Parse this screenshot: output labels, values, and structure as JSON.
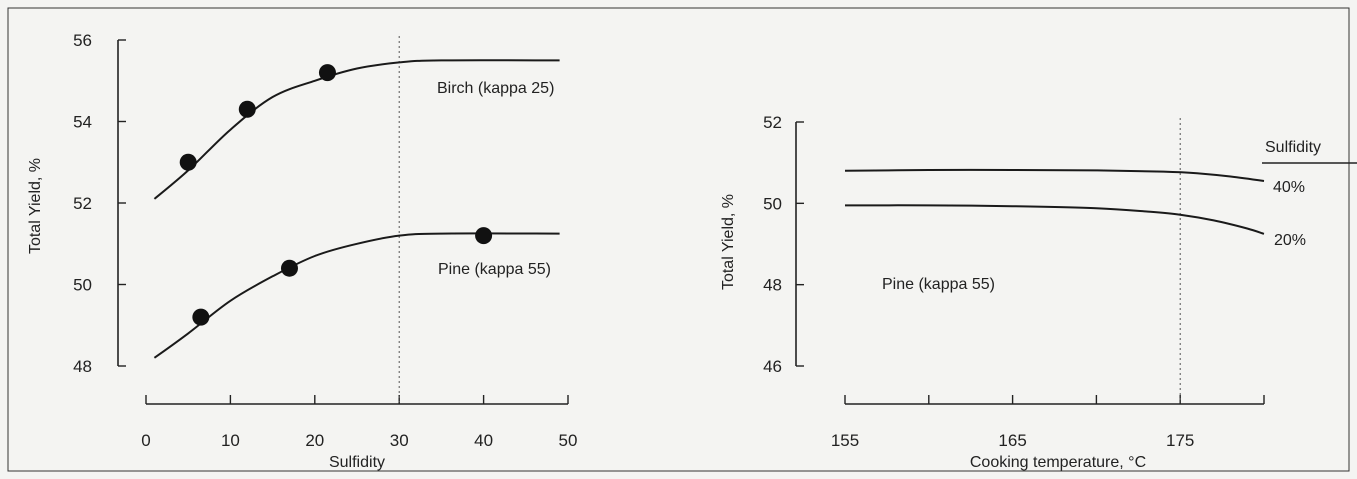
{
  "chart_data": [
    {
      "type": "line",
      "xlabel": "Sulfidity",
      "ylabel": "Total Yield, %",
      "xlim": [
        0,
        50
      ],
      "ylim": [
        48,
        56
      ],
      "xticks": [
        0,
        10,
        20,
        30,
        40,
        50
      ],
      "yticks": [
        48,
        50,
        52,
        54,
        56
      ],
      "reference_x": 30,
      "series": [
        {
          "name": "Birch (kappa 25)",
          "curve": [
            [
              1,
              52.1
            ],
            [
              5,
              52.8
            ],
            [
              10,
              53.8
            ],
            [
              15,
              54.6
            ],
            [
              20,
              55.0
            ],
            [
              25,
              55.3
            ],
            [
              30,
              55.45
            ],
            [
              35,
              55.5
            ],
            [
              49,
              55.5
            ]
          ],
          "points": [
            [
              5,
              53.0
            ],
            [
              12,
              54.3
            ],
            [
              21.5,
              55.2
            ]
          ]
        },
        {
          "name": "Pine (kappa 55)",
          "curve": [
            [
              1,
              48.2
            ],
            [
              5,
              48.8
            ],
            [
              10,
              49.6
            ],
            [
              15,
              50.2
            ],
            [
              20,
              50.7
            ],
            [
              25,
              51.0
            ],
            [
              30,
              51.2
            ],
            [
              35,
              51.25
            ],
            [
              49,
              51.25
            ]
          ],
          "points": [
            [
              6.5,
              49.2
            ],
            [
              17,
              50.4
            ],
            [
              40,
              51.2
            ]
          ]
        }
      ]
    },
    {
      "type": "line",
      "xlabel": "Cooking temperature, °C",
      "ylabel": "Total Yield, %",
      "xlim": [
        155,
        180
      ],
      "ylim": [
        46,
        52
      ],
      "xticks": [
        155,
        165,
        175
      ],
      "yticks": [
        46,
        48,
        50,
        52
      ],
      "reference_x": 175,
      "annotation": "Pine (kappa 55)",
      "legend_title": "Sulfidity",
      "series": [
        {
          "name": "40%",
          "curve": [
            [
              155,
              50.8
            ],
            [
              160,
              50.82
            ],
            [
              165,
              50.82
            ],
            [
              170,
              50.81
            ],
            [
              174,
              50.78
            ],
            [
              176,
              50.74
            ],
            [
              178,
              50.66
            ],
            [
              180,
              50.55
            ]
          ]
        },
        {
          "name": "20%",
          "curve": [
            [
              155,
              49.95
            ],
            [
              160,
              49.95
            ],
            [
              165,
              49.93
            ],
            [
              170,
              49.88
            ],
            [
              173,
              49.8
            ],
            [
              175,
              49.72
            ],
            [
              177,
              49.58
            ],
            [
              179,
              49.38
            ],
            [
              180,
              49.25
            ]
          ]
        }
      ]
    }
  ]
}
